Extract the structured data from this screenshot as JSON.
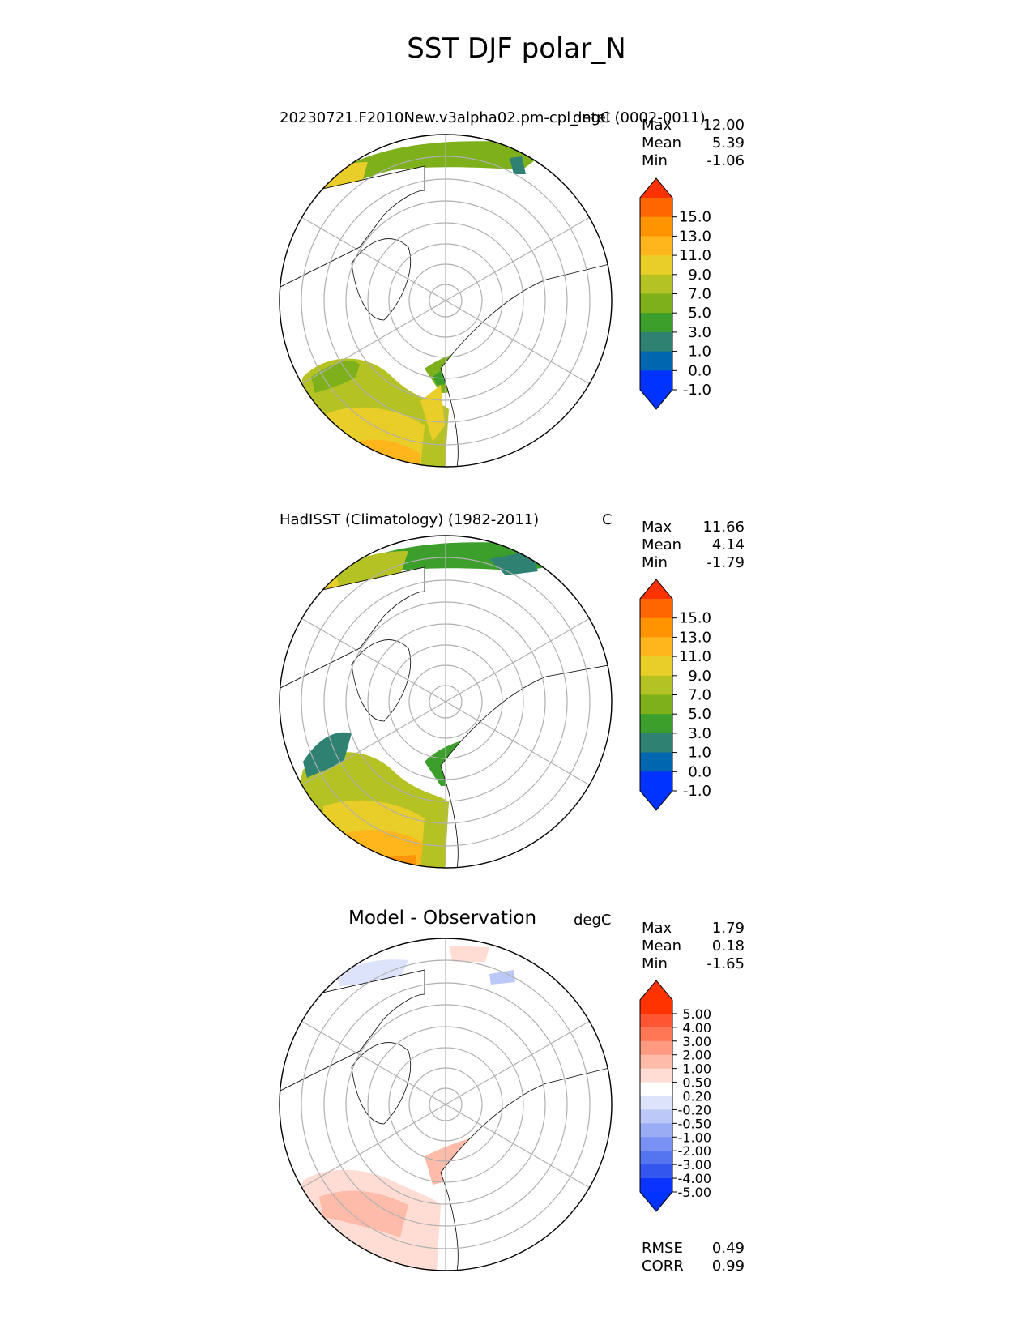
{
  "figure_title": "SST DJF polar_N",
  "panels": [
    {
      "name": "model",
      "title": "20230721.F2010New.v3alpha02.pm-cpl_intel (0002-0011)",
      "units": "degC",
      "stats": [
        {
          "k": "Max",
          "v": "12.00"
        },
        {
          "k": "Mean",
          "v": "5.39"
        },
        {
          "k": "Min",
          "v": "-1.06"
        }
      ],
      "colorbar": {
        "labels": [
          "15.0",
          "13.0",
          "11.0",
          "9.0",
          "7.0",
          "5.0",
          "3.0",
          "1.0",
          "0.0",
          "-1.0"
        ],
        "colors": [
          "#ff3300",
          "#ff6600",
          "#ff9400",
          "#ffb51c",
          "#e9cd28",
          "#b4c223",
          "#7db01a",
          "#3c9e2b",
          "#2f8272",
          "#0066b0",
          "#0033ff",
          "#0033ff"
        ]
      }
    },
    {
      "name": "obs",
      "title": "HadISST (Climatology) (1982-2011)",
      "units": "C",
      "stats": [
        {
          "k": "Max",
          "v": "11.66"
        },
        {
          "k": "Mean",
          "v": "4.14"
        },
        {
          "k": "Min",
          "v": "-1.79"
        }
      ],
      "colorbar": {
        "labels": [
          "15.0",
          "13.0",
          "11.0",
          "9.0",
          "7.0",
          "5.0",
          "3.0",
          "1.0",
          "0.0",
          "-1.0"
        ],
        "colors": [
          "#ff3300",
          "#ff6600",
          "#ff9400",
          "#ffb51c",
          "#e9cd28",
          "#b4c223",
          "#7db01a",
          "#3c9e2b",
          "#2f8272",
          "#0066b0",
          "#0033ff",
          "#0033ff"
        ]
      }
    },
    {
      "name": "diff",
      "title": "Model - Observation",
      "units": "degC",
      "stats": [
        {
          "k": "Max",
          "v": "1.79"
        },
        {
          "k": "Mean",
          "v": "0.18"
        },
        {
          "k": "Min",
          "v": "-1.65"
        }
      ],
      "colorbar": {
        "labels": [
          "5.00",
          "4.00",
          "3.00",
          "2.00",
          "1.00",
          "0.50",
          "0.20",
          "-0.20",
          "-0.50",
          "-1.00",
          "-2.00",
          "-3.00",
          "-4.00",
          "-5.00"
        ],
        "colors": [
          "#ff3300",
          "#ff3300",
          "#ff5533",
          "#ff7755",
          "#ff9980",
          "#ffbbaa",
          "#ffdcd4",
          "#ffffff",
          "#dde3fa",
          "#bcc8f7",
          "#9aacf4",
          "#7891f2",
          "#5575f0",
          "#3356ee",
          "#0a33ff",
          "#0033ff"
        ]
      },
      "metrics": [
        {
          "k": "RMSE",
          "v": "0.49"
        },
        {
          "k": "CORR",
          "v": "0.99"
        }
      ]
    }
  ]
}
